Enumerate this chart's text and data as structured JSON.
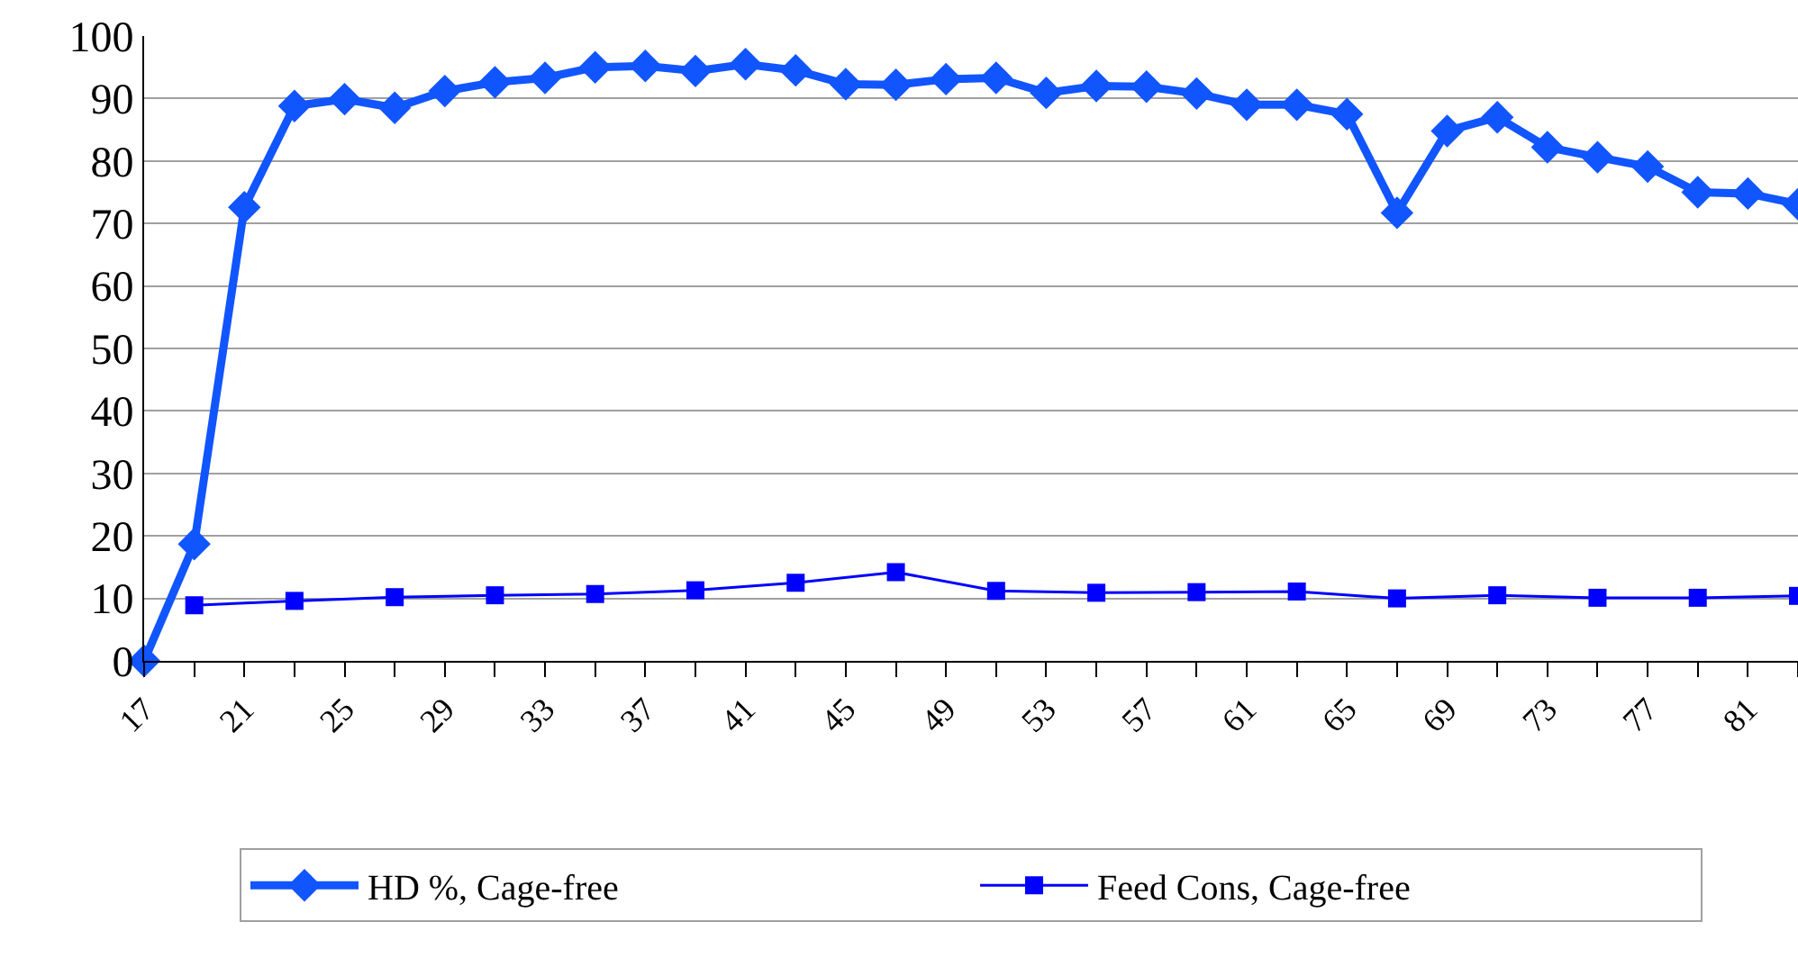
{
  "chart_data": {
    "type": "line",
    "xlim": [
      17,
      83
    ],
    "xticks": [
      17,
      {
        "value": 19,
        "label": null
      },
      21,
      {
        "value": 23,
        "label": null
      },
      25,
      {
        "value": 27,
        "label": null
      },
      29,
      {
        "value": 31,
        "label": null
      },
      33,
      {
        "value": 35,
        "label": null
      },
      37,
      {
        "value": 39,
        "label": null
      },
      41,
      {
        "value": 43,
        "label": null
      },
      45,
      {
        "value": 47,
        "label": null
      },
      49,
      {
        "value": 51,
        "label": null
      },
      53,
      {
        "value": 55,
        "label": null
      },
      57,
      {
        "value": 59,
        "label": null
      },
      61,
      {
        "value": 63,
        "label": null
      },
      65,
      {
        "value": 67,
        "label": null
      },
      69,
      {
        "value": 71,
        "label": null
      },
      73,
      {
        "value": 75,
        "label": null
      },
      77,
      {
        "value": 79,
        "label": null
      },
      81,
      {
        "value": 83,
        "label": null
      }
    ],
    "ylim": [
      0,
      100
    ],
    "yticks": [
      0,
      10,
      20,
      30,
      40,
      50,
      60,
      70,
      80,
      90,
      100
    ],
    "grid": "y",
    "legend": "bottom",
    "series": [
      {
        "name": "HD %, Cage-free",
        "color": "#1155ff",
        "marker": "diamond",
        "x": [
          17,
          19,
          21,
          23,
          25,
          27,
          29,
          31,
          33,
          35,
          37,
          39,
          41,
          43,
          45,
          47,
          49,
          51,
          53,
          55,
          57,
          59,
          61,
          63,
          65,
          67,
          69,
          71,
          73,
          75,
          77,
          79,
          81,
          83
        ],
        "values": [
          0,
          18.7,
          72.6,
          88.8,
          89.9,
          88.5,
          91.2,
          92.6,
          93.3,
          95.0,
          95.2,
          94.4,
          95.5,
          94.5,
          92.3,
          92.2,
          93.1,
          93.3,
          90.9,
          92.0,
          91.9,
          90.8,
          89.0,
          89.0,
          87.5,
          71.7,
          84.8,
          87.0,
          82.2,
          80.6,
          79.1,
          75.0,
          74.8,
          73.1
        ]
      },
      {
        "name": "Feed Cons, Cage-free",
        "color": "#0000ff",
        "marker": "square",
        "x": [
          19,
          23,
          27,
          31,
          35,
          39,
          43,
          47,
          51,
          55,
          59,
          63,
          67,
          71,
          75,
          79,
          83
        ],
        "values": [
          8.9,
          9.6,
          10.2,
          10.5,
          10.7,
          11.3,
          12.5,
          14.2,
          11.2,
          10.9,
          11.0,
          11.1,
          10.0,
          10.5,
          10.1,
          10.1,
          10.4
        ]
      }
    ]
  }
}
